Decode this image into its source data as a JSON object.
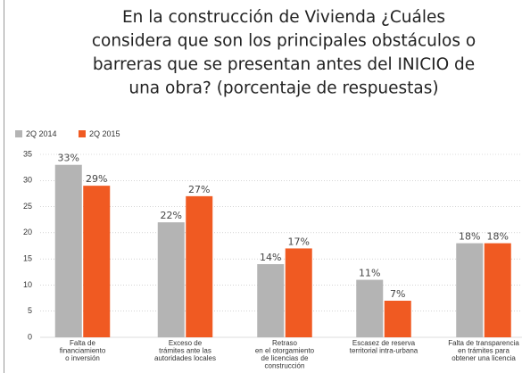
{
  "chart_data": {
    "type": "bar",
    "title": [
      "En la construcción de Vivienda ¿Cuáles",
      "considera que son los principales obstáculos o",
      "barreras que se presentan antes del INICIO de",
      "una obra? (porcentaje de respuestas)"
    ],
    "categories": [
      [
        "Falta de",
        "financiamiento",
        "o inversión"
      ],
      [
        "Exceso de",
        "trámites ante las",
        "autoridades locales"
      ],
      [
        "Retraso",
        "en el otorgamiento",
        "de licencias de",
        "construcción"
      ],
      [
        "Escasez de reserva",
        "territorial intra-urbana"
      ],
      [
        "Falta de transparencia",
        "en trámites para",
        "obtener una licencia"
      ]
    ],
    "series": [
      {
        "name": "2Q 2014",
        "color": "#b4b4b4",
        "values": [
          33,
          22,
          14,
          11,
          18
        ],
        "value_labels": [
          "33%",
          "22%",
          "14%",
          "11%",
          "18%"
        ]
      },
      {
        "name": "2Q 2015",
        "color": "#f05a22",
        "values": [
          29,
          27,
          17,
          7,
          18
        ],
        "value_labels": [
          "29%",
          "27%",
          "17%",
          "7%",
          "18%"
        ]
      }
    ],
    "ylim": [
      0,
      35
    ],
    "yticks": [
      0,
      5,
      10,
      15,
      20,
      25,
      30,
      35
    ],
    "grid": true
  }
}
